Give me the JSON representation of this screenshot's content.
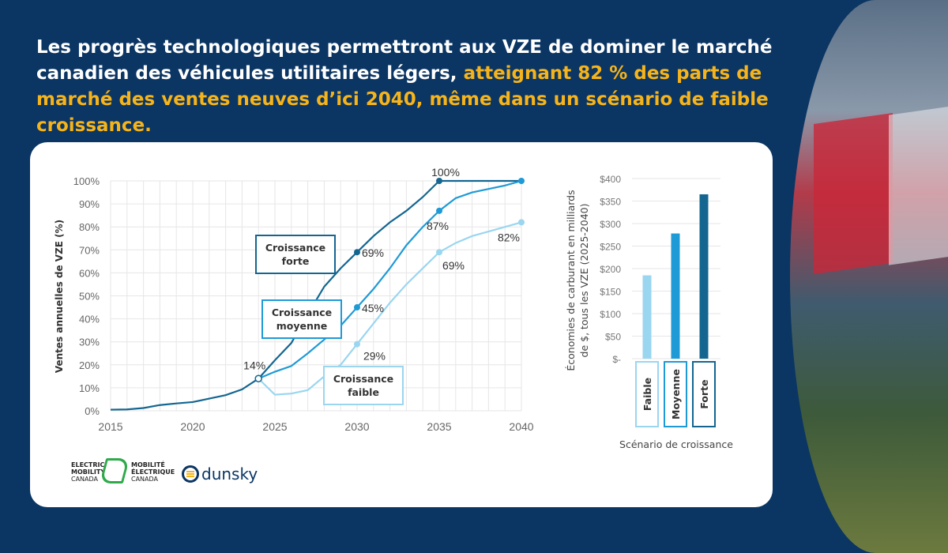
{
  "title": {
    "part1": "Les progrès technologiques permettront aux VZE de dominer le marché canadien des véhicules utilitaires légers, ",
    "highlight": "atteignant 82 % des parts de marché des ventes neuves d’ici 2040, même dans un scénario de faible croissance."
  },
  "colors": {
    "forte": "#146690",
    "moyenne": "#1e9ad6",
    "faible": "#9ad6f0",
    "highlight": "#f6b41a",
    "background": "#0b3563"
  },
  "chart_data": [
    {
      "type": "line",
      "ylabel": "Ventes annuelles de VZE (%)",
      "xlabel": "",
      "xlim": [
        2015,
        2040
      ],
      "ylim": [
        0,
        100
      ],
      "x_ticks": [
        "2015",
        "2020",
        "2025",
        "2030",
        "2035",
        "2040"
      ],
      "y_ticks": [
        "0%",
        "10%",
        "20%",
        "30%",
        "40%",
        "50%",
        "60%",
        "70%",
        "80%",
        "90%",
        "100%"
      ],
      "grid": true,
      "series": [
        {
          "name": "Croissance forte",
          "key": "forte",
          "x": [
            2015,
            2016,
            2017,
            2018,
            2019,
            2020,
            2021,
            2022,
            2023,
            2024,
            2025,
            2026,
            2027,
            2028,
            2029,
            2030,
            2031,
            2032,
            2033,
            2034,
            2035,
            2036,
            2037,
            2038,
            2039,
            2040
          ],
          "values": [
            0.5,
            0.6,
            1.2,
            2.5,
            3.2,
            3.8,
            5.3,
            6.8,
            9.3,
            14,
            22,
            29.5,
            42,
            54,
            62,
            69,
            76,
            82,
            87,
            93,
            100,
            100,
            100,
            100,
            100,
            100
          ]
        },
        {
          "name": "Croissance moyenne",
          "key": "moyenne",
          "x": [
            2024,
            2025,
            2026,
            2027,
            2028,
            2029,
            2030,
            2031,
            2032,
            2033,
            2034,
            2035,
            2036,
            2037,
            2038,
            2039,
            2040
          ],
          "values": [
            14,
            17,
            19.5,
            25,
            31,
            37,
            45,
            53,
            62,
            72,
            80,
            87,
            92.5,
            95,
            96.5,
            98,
            100
          ]
        },
        {
          "name": "Croissance faible",
          "key": "faible",
          "x": [
            2024,
            2025,
            2026,
            2027,
            2028,
            2029,
            2030,
            2031,
            2032,
            2033,
            2034,
            2035,
            2036,
            2037,
            2038,
            2039,
            2040
          ],
          "values": [
            14,
            7,
            7.5,
            9,
            15,
            20,
            29,
            38,
            47,
            55,
            62,
            69,
            73,
            76,
            78,
            80,
            82
          ]
        }
      ],
      "annotations": [
        {
          "text": "14%",
          "x": 2024,
          "y": 14,
          "series": "start"
        },
        {
          "text": "69%",
          "x": 2030,
          "y": 69,
          "series": "forte"
        },
        {
          "text": "100%",
          "x": 2035,
          "y": 100,
          "series": "forte"
        },
        {
          "text": "45%",
          "x": 2030,
          "y": 45,
          "series": "moyenne"
        },
        {
          "text": "87%",
          "x": 2035,
          "y": 87,
          "series": "moyenne"
        },
        {
          "text": "29%",
          "x": 2030,
          "y": 29,
          "series": "faible"
        },
        {
          "text": "69%",
          "x": 2035,
          "y": 69,
          "series": "faible"
        },
        {
          "text": "82%",
          "x": 2040,
          "y": 82,
          "series": "faible"
        }
      ],
      "labels": {
        "forte": [
          "Croissance",
          "forte"
        ],
        "moyenne": [
          "Croissance",
          "moyenne"
        ],
        "faible": [
          "Croissance",
          "faible"
        ]
      }
    },
    {
      "type": "bar",
      "ylabel_lines": [
        "Économies de carburant en milliards",
        "de $, tous les VZE (2025-2040)"
      ],
      "xlabel": "Scénario de croissance",
      "categories": [
        "Faible",
        "Moyenne",
        "Forte"
      ],
      "values": [
        185,
        278,
        365
      ],
      "ylim": [
        0,
        400
      ],
      "y_ticks": [
        "$-",
        "$50",
        "$100",
        "$150",
        "$200",
        "$250",
        "$300",
        "$350",
        "$400"
      ]
    }
  ],
  "logos": {
    "emc_en": [
      "ELECTRIC",
      "MOBILITY",
      "CANADA"
    ],
    "emc_fr": [
      "MOBILITÉ",
      "ÉLECTRIQUE",
      "CANADA"
    ],
    "dunsky": "dunsky"
  }
}
